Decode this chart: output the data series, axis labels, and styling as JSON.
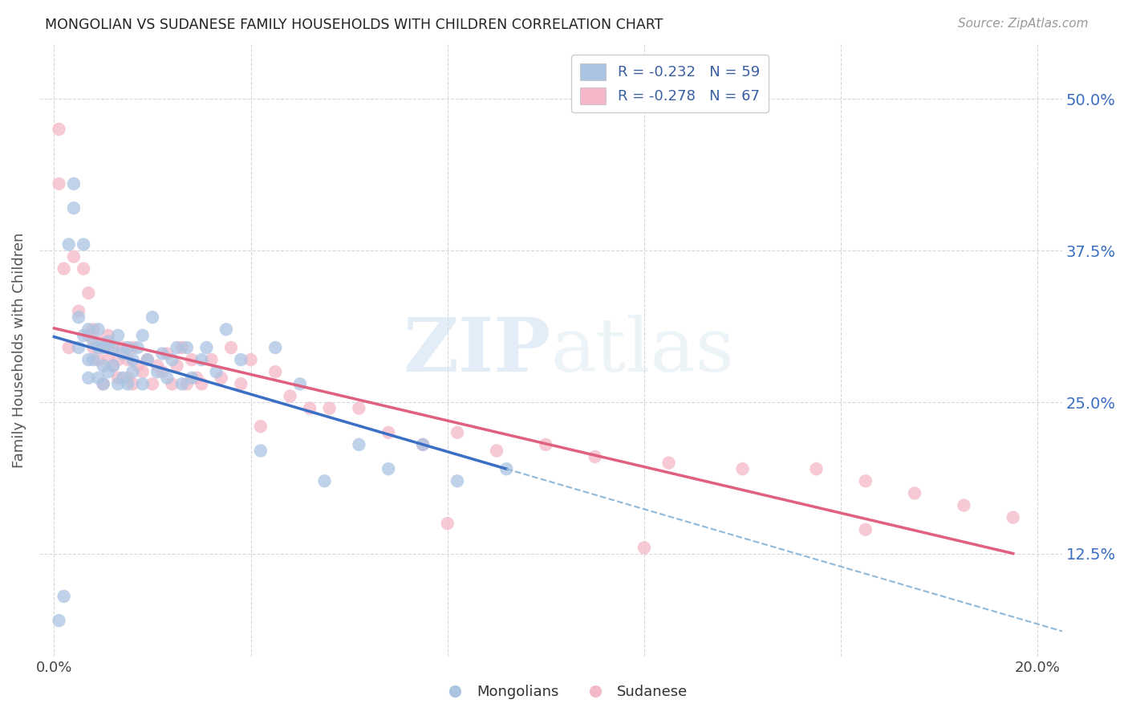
{
  "title": "MONGOLIAN VS SUDANESE FAMILY HOUSEHOLDS WITH CHILDREN CORRELATION CHART",
  "source": "Source: ZipAtlas.com",
  "ylabel": "Family Households with Children",
  "x_ticks": [
    0.0,
    0.04,
    0.08,
    0.12,
    0.16,
    0.2
  ],
  "y_ticks": [
    0.125,
    0.25,
    0.375,
    0.5
  ],
  "y_tick_labels": [
    "12.5%",
    "25.0%",
    "37.5%",
    "50.0%"
  ],
  "mongolian_R": -0.232,
  "mongolian_N": 59,
  "sudanese_R": -0.278,
  "sudanese_N": 67,
  "mongolian_color": "#aac4e2",
  "sudanese_color": "#f5b8c8",
  "mongolian_line_color": "#3a6fc4",
  "sudanese_line_color": "#e06080",
  "dashed_line_color": "#90b8d8",
  "watermark_zip": "ZIP",
  "watermark_atlas": "atlas",
  "legend_text_color": "#3a5fa0",
  "mongolian_x": [
    0.001,
    0.002,
    0.003,
    0.004,
    0.004,
    0.005,
    0.005,
    0.006,
    0.006,
    0.007,
    0.007,
    0.007,
    0.008,
    0.008,
    0.009,
    0.009,
    0.009,
    0.01,
    0.01,
    0.01,
    0.011,
    0.011,
    0.012,
    0.012,
    0.013,
    0.013,
    0.014,
    0.014,
    0.015,
    0.015,
    0.016,
    0.016,
    0.017,
    0.018,
    0.018,
    0.019,
    0.02,
    0.021,
    0.022,
    0.023,
    0.024,
    0.025,
    0.026,
    0.027,
    0.028,
    0.03,
    0.031,
    0.033,
    0.035,
    0.038,
    0.042,
    0.045,
    0.05,
    0.055,
    0.062,
    0.068,
    0.075,
    0.082,
    0.092
  ],
  "mongolian_y": [
    0.07,
    0.09,
    0.38,
    0.41,
    0.43,
    0.295,
    0.32,
    0.305,
    0.38,
    0.31,
    0.285,
    0.27,
    0.3,
    0.285,
    0.295,
    0.31,
    0.27,
    0.295,
    0.28,
    0.265,
    0.3,
    0.275,
    0.295,
    0.28,
    0.305,
    0.265,
    0.29,
    0.27,
    0.295,
    0.265,
    0.275,
    0.285,
    0.295,
    0.305,
    0.265,
    0.285,
    0.32,
    0.275,
    0.29,
    0.27,
    0.285,
    0.295,
    0.265,
    0.295,
    0.27,
    0.285,
    0.295,
    0.275,
    0.31,
    0.285,
    0.21,
    0.295,
    0.265,
    0.185,
    0.215,
    0.195,
    0.215,
    0.185,
    0.195
  ],
  "sudanese_x": [
    0.001,
    0.001,
    0.002,
    0.003,
    0.004,
    0.005,
    0.006,
    0.007,
    0.007,
    0.008,
    0.008,
    0.009,
    0.009,
    0.01,
    0.01,
    0.011,
    0.011,
    0.012,
    0.012,
    0.013,
    0.013,
    0.014,
    0.015,
    0.015,
    0.016,
    0.016,
    0.017,
    0.018,
    0.019,
    0.02,
    0.021,
    0.022,
    0.023,
    0.024,
    0.025,
    0.026,
    0.027,
    0.028,
    0.029,
    0.03,
    0.032,
    0.034,
    0.036,
    0.038,
    0.04,
    0.042,
    0.045,
    0.048,
    0.052,
    0.056,
    0.062,
    0.068,
    0.075,
    0.082,
    0.09,
    0.1,
    0.11,
    0.125,
    0.14,
    0.155,
    0.165,
    0.175,
    0.185,
    0.195,
    0.165,
    0.12,
    0.08
  ],
  "sudanese_y": [
    0.475,
    0.43,
    0.36,
    0.295,
    0.37,
    0.325,
    0.36,
    0.305,
    0.34,
    0.295,
    0.31,
    0.285,
    0.3,
    0.295,
    0.265,
    0.285,
    0.305,
    0.28,
    0.295,
    0.285,
    0.27,
    0.295,
    0.285,
    0.27,
    0.295,
    0.265,
    0.28,
    0.275,
    0.285,
    0.265,
    0.28,
    0.275,
    0.29,
    0.265,
    0.28,
    0.295,
    0.265,
    0.285,
    0.27,
    0.265,
    0.285,
    0.27,
    0.295,
    0.265,
    0.285,
    0.23,
    0.275,
    0.255,
    0.245,
    0.245,
    0.245,
    0.225,
    0.215,
    0.225,
    0.21,
    0.215,
    0.205,
    0.2,
    0.195,
    0.195,
    0.185,
    0.175,
    0.165,
    0.155,
    0.145,
    0.13,
    0.15
  ],
  "xlim": [
    -0.003,
    0.205
  ],
  "ylim": [
    0.04,
    0.545
  ],
  "background_color": "#ffffff",
  "grid_color": "#d8d8d8"
}
